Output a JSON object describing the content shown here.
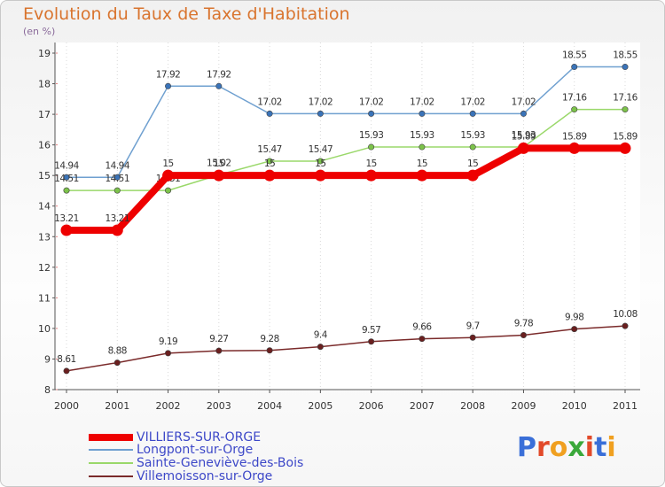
{
  "header": {
    "title": "Evolution du Taux de Taxe d'Habitation",
    "units": "(en %)"
  },
  "legend": [
    {
      "label": "VILLIERS-SUR-ORGE",
      "color": "#ee0000"
    },
    {
      "label": "Longpont-sur-Orge",
      "color": "#6fa0d0"
    },
    {
      "label": "Sainte-Geneviève-des-Bois",
      "color": "#9ad86a"
    },
    {
      "label": "Villemoisson-sur-Orge",
      "color": "#7a2a2a"
    }
  ],
  "logo": {
    "letters": [
      "P",
      "r",
      "o",
      "x",
      "i",
      "t",
      "i"
    ],
    "colors": [
      "#3a6fd8",
      "#e24a2a",
      "#f0a020",
      "#3aa83a",
      "#e24a2a",
      "#3a6fd8",
      "#f0a020"
    ]
  },
  "chart_data": {
    "type": "line",
    "x": [
      "2000",
      "2001",
      "2002",
      "2003",
      "2004",
      "2005",
      "2006",
      "2007",
      "2008",
      "2009",
      "2010",
      "2011"
    ],
    "ylim": [
      8,
      19
    ],
    "yticks": [
      "8",
      "9",
      "10",
      "11",
      "12",
      "13",
      "14",
      "15",
      "16",
      "17",
      "18",
      "19"
    ],
    "grid": false,
    "legend_position": "bottom-left",
    "series": [
      {
        "name": "Longpont-sur-Orge",
        "color": "#6fa0d0",
        "marker": "#3a73b8",
        "values": [
          14.94,
          14.94,
          17.92,
          17.92,
          17.02,
          17.02,
          17.02,
          17.02,
          17.02,
          17.02,
          18.55,
          18.55
        ],
        "labels": [
          "14.94",
          "14.94",
          "17.92",
          "17.92",
          "17.02",
          "17.02",
          "17.02",
          "17.02",
          "17.02",
          "17.02",
          "18.55",
          "18.55"
        ]
      },
      {
        "name": "Sainte-Geneviève-des-Bois",
        "color": "#9ad86a",
        "marker": "#7cc24a",
        "values": [
          14.51,
          14.51,
          14.51,
          15.02,
          15.47,
          15.47,
          15.93,
          15.93,
          15.93,
          15.93,
          17.16,
          17.16
        ],
        "labels": [
          "14.51",
          "14.51",
          "14.51",
          "15.02",
          "15.47",
          "15.47",
          "15.93",
          "15.93",
          "15.93",
          "15.93",
          "17.16",
          "17.16"
        ]
      },
      {
        "name": "VILLIERS-SUR-ORGE",
        "color": "#ee0000",
        "marker": "#ee0000",
        "values": [
          13.21,
          13.21,
          15,
          15,
          15,
          15,
          15,
          15,
          15,
          15.89,
          15.89,
          15.89
        ],
        "labels": [
          "13.21",
          "13.21",
          "15",
          "15",
          "15",
          "15",
          "15",
          "15",
          "15",
          "15.89",
          "15.89",
          "15.89"
        ]
      },
      {
        "name": "Villemoisson-sur-Orge",
        "color": "#7a2a2a",
        "marker": "#6a1f1f",
        "values": [
          8.61,
          8.88,
          9.19,
          9.27,
          9.28,
          9.4,
          9.57,
          9.66,
          9.7,
          9.78,
          9.98,
          10.08
        ],
        "labels": [
          "8.61",
          "8.88",
          "9.19",
          "9.27",
          "9.28",
          "9.4",
          "9.57",
          "9.66",
          "9.7",
          "9.78",
          "9.98",
          "10.08"
        ]
      }
    ]
  }
}
